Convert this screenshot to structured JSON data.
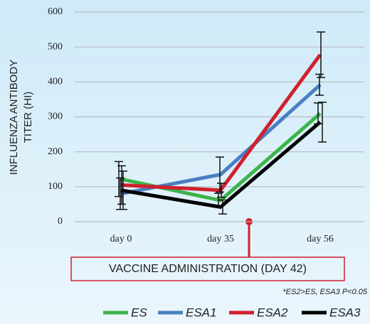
{
  "chart_data": {
    "type": "line",
    "y_label_lines": [
      "INFLUENZA ANTIBODY",
      "TITER (HI)"
    ],
    "categories": [
      "day 0",
      "day 35",
      "day 56"
    ],
    "series": [
      {
        "name": "ES",
        "color": "#3cb44b",
        "values": [
          122,
          61,
          310
        ],
        "errors": [
          50,
          20,
          30
        ]
      },
      {
        "name": "ESA1",
        "color": "#4a7fc1",
        "values": [
          80,
          135,
          392
        ],
        "errors": [
          45,
          50,
          30
        ]
      },
      {
        "name": "ESA2",
        "color": "#d0202e",
        "values": [
          105,
          90,
          478
        ],
        "errors": [
          55,
          20,
          65
        ]
      },
      {
        "name": "ESA3",
        "color": "#000000",
        "values": [
          90,
          42,
          285
        ],
        "errors": [
          55,
          20,
          57
        ]
      }
    ],
    "ylim": [
      0,
      600
    ],
    "yticks": [
      0,
      100,
      200,
      300,
      400,
      500,
      600
    ],
    "grid": true,
    "annotation": "VACCINE ADMINISTRATION (DAY 42)",
    "note": "*ES2>ES, ESA3  P<0.05",
    "legend": "bottom"
  }
}
